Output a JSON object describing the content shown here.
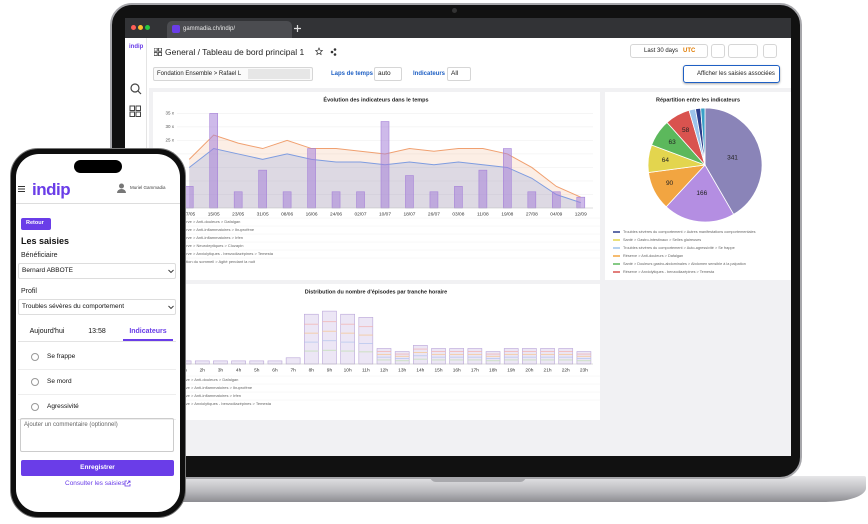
{
  "browser": {
    "url": "gammadia.ch/indip/"
  },
  "app": {
    "logo": "indip",
    "breadcrumb": "General / Tableau de bord principal 1",
    "time_range": "Last 30 days",
    "timezone": "UTC"
  },
  "filters": {
    "location": "Fondation Ensemble > Rafael L",
    "time_label": "Laps de temps",
    "time_value": "auto",
    "indicator_label": "Indicateurs",
    "indicator_value": "All",
    "associated_button": "Afficher les saisies associées"
  },
  "evolution": {
    "title": "Évolution des indicateurs dans le temps",
    "ylim": [
      0,
      37
    ],
    "yticks": [
      {
        "value": 5,
        "label": "5 x"
      },
      {
        "value": 10,
        "label": "10 x"
      },
      {
        "value": 15,
        "label": "15 x"
      },
      {
        "value": 20,
        "label": "20 x"
      },
      {
        "value": 25,
        "label": "25 x"
      },
      {
        "value": 30,
        "label": "30 x"
      },
      {
        "value": 35,
        "label": "35 x"
      }
    ],
    "categories": [
      "07/05",
      "15/05",
      "23/05",
      "31/05",
      "08/06",
      "16/06",
      "24/06",
      "02/07",
      "10/07",
      "18/07",
      "26/07",
      "03/08",
      "11/08",
      "19/08",
      "27/08",
      "04/09",
      "12/09"
    ],
    "series": [
      {
        "kind": "line",
        "color": "#f0a070",
        "values": [
          18,
          27,
          24,
          22,
          25,
          22,
          22,
          21,
          20,
          22,
          21,
          22,
          22,
          20,
          15,
          8,
          4
        ]
      },
      {
        "kind": "area",
        "color": "#7e9ce0",
        "values": [
          15,
          22,
          20,
          18,
          20,
          18,
          17,
          17,
          16,
          17,
          16,
          17,
          16,
          15,
          11,
          5,
          2
        ]
      },
      {
        "kind": "bar",
        "color": "#a682d8",
        "values": [
          8,
          35,
          6,
          14,
          6,
          22,
          6,
          6,
          32,
          12,
          6,
          8,
          14,
          22,
          6,
          6,
          4
        ]
      }
    ],
    "legend": [
      "Réserve > Anti-douleurs > Dafalgan",
      "Réserve > Anti-inflammatoires > Ibuprofène",
      "Réserve > Anti-inflammatoires > Irfen",
      "Réserve > Neuroleptiques > Clozapin",
      "Réserve > Anxiolytiques - benzodiazépines > Temesta",
      "Agitation du sommeil > Agité pendant la nuit"
    ]
  },
  "pie": {
    "title": "Répartition entre les indicateurs",
    "slices": [
      {
        "value": 341,
        "color": "#8a84b8"
      },
      {
        "value": 166,
        "color": "#b48ee2"
      },
      {
        "value": 90,
        "color": "#f2a541"
      },
      {
        "value": 64,
        "color": "#e3d54e"
      },
      {
        "value": 63,
        "color": "#5cb85c"
      },
      {
        "value": 58,
        "color": "#d9534f"
      },
      {
        "value": 15,
        "color": "#9cc3ea"
      },
      {
        "value": 12,
        "color": "#2c3e8c"
      },
      {
        "value": 10,
        "color": "#3aa0c8"
      }
    ],
    "legend": [
      {
        "name": "Troubles sévères du comportement > Autres manifestations comportementales",
        "color": "#2c3e8c"
      },
      {
        "name": "Santé > Gastro-intestinaux > Selles glaireuses",
        "color": "#e3d54e"
      },
      {
        "name": "Troubles sévères du comportement > Auto-agressivité > Se frappe",
        "color": "#9cc3ea"
      },
      {
        "name": "Réserve > Anti-douleurs > Dafalgan",
        "color": "#f2a541"
      },
      {
        "name": "Santé > Douleurs gastro-abdominales > Abdomen sensible à la palpation",
        "color": "#5cb85c"
      },
      {
        "name": "Réserve > Anxiolytiques - benzodiazépines > Temesta",
        "color": "#d9534f"
      }
    ]
  },
  "histogram": {
    "title": "Distribution du nombre d'épisodes par tranche horaire",
    "categories": [
      "1h",
      "2h",
      "3h",
      "4h",
      "5h",
      "6h",
      "7h",
      "8h",
      "9h",
      "10h",
      "11h",
      "12h",
      "13h",
      "14h",
      "15h",
      "16h",
      "17h",
      "18h",
      "19h",
      "20h",
      "21h",
      "22h",
      "23h"
    ],
    "values": [
      1,
      1,
      1,
      1,
      1,
      1,
      2,
      16,
      17,
      16,
      15,
      5,
      4,
      6,
      5,
      5,
      5,
      4,
      5,
      5,
      5,
      5,
      4
    ],
    "ylim": [
      0,
      18
    ],
    "color": "#ece6f5",
    "legend": [
      "Réserve > Anti-douleurs > Dafalgan",
      "Réserve > Anti-inflammatoires > Ibuprofène",
      "Réserve > Anti-inflammatoires > Irfen",
      "Réserve > Anxiolytiques - benzodiazépines > Temesta"
    ]
  },
  "phone": {
    "logo": "indip",
    "user": "Muriel Gammadia",
    "back_button": "Retour",
    "title": "Les saisies",
    "beneficiary_label": "Bénéficiaire",
    "beneficiary": "Bernard ABBOTE",
    "profile_label": "Profil",
    "profile": "Troubles sévères du comportement",
    "tabs": [
      "Aujourd'hui",
      "13:58",
      "Indicateurs"
    ],
    "active_tab": 2,
    "indicators": [
      "Se frappe",
      "Se mord",
      "Agressivité"
    ],
    "comment_placeholder": "Ajouter un commentaire (optionnel)",
    "save_button": "Enregistrer",
    "link": "Consulter les saisies"
  }
}
